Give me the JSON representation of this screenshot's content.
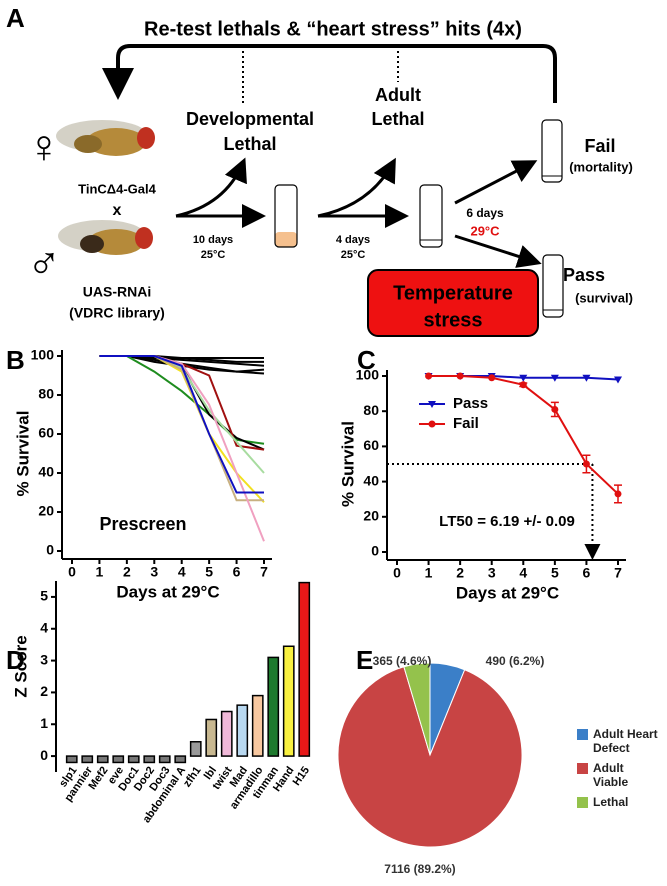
{
  "diagram": {
    "panel": "A",
    "title": "Re-test lethals & “heart stress” hits (4x)",
    "female_symbol": "♀",
    "male_symbol": "♂",
    "female_line": "TinCΔ4-Gal4",
    "cross": "x",
    "male_line": "UAS-RNAi",
    "male_library": "(VDRC library)",
    "step1_time": "10 days",
    "step1_temp": "25°C",
    "step2_time": "4 days",
    "step2_temp": "25°C",
    "step3_time": "6 days",
    "step3_temp": "29°C",
    "dev_lethal": [
      "Developmental",
      "Lethal"
    ],
    "adult_lethal": [
      "Adult",
      "Lethal"
    ],
    "fail": "Fail",
    "fail_note": "(mortality)",
    "pass": "Pass",
    "pass_note": "(survival)",
    "stress_box": [
      "Temperature",
      "stress"
    ]
  },
  "chart_data": [
    {
      "type": "line",
      "panel": "B",
      "annotation": "Prescreen",
      "x_label": "Days at 29°C",
      "y_label": "% Survival",
      "x": [
        1,
        2,
        3,
        4,
        5,
        6,
        7
      ],
      "xlim": [
        0,
        7
      ],
      "xticks": [
        0,
        1,
        2,
        3,
        4,
        5,
        6,
        7
      ],
      "ylim": [
        0,
        100
      ],
      "yticks": [
        0,
        20,
        40,
        60,
        80,
        100
      ],
      "series": [
        {
          "color": "#000000",
          "values": [
            100,
            100,
            99,
            98,
            97,
            96,
            95
          ]
        },
        {
          "color": "#000000",
          "values": [
            100,
            100,
            98,
            96,
            94,
            92,
            91
          ]
        },
        {
          "color": "#000000",
          "values": [
            100,
            100,
            99,
            99,
            99,
            99,
            99
          ]
        },
        {
          "color": "#000000",
          "values": [
            100,
            100,
            97,
            95,
            93,
            92,
            93
          ]
        },
        {
          "color": "#000000",
          "values": [
            100,
            100,
            100,
            99,
            98,
            97,
            97
          ]
        },
        {
          "color": "#1e8c1e",
          "values": [
            100,
            100,
            92,
            82,
            70,
            57,
            55
          ]
        },
        {
          "color": "#000000",
          "values": [
            100,
            100,
            100,
            95,
            70,
            58,
            52
          ]
        },
        {
          "color": "#a01010",
          "values": [
            100,
            100,
            100,
            96,
            90,
            54,
            52
          ]
        },
        {
          "color": "#f2e020",
          "values": [
            100,
            100,
            100,
            92,
            60,
            40,
            25
          ]
        },
        {
          "color": "#a8dca0",
          "values": [
            100,
            100,
            100,
            94,
            72,
            56,
            40
          ]
        },
        {
          "color": "#c8b080",
          "values": [
            100,
            100,
            100,
            93,
            60,
            26,
            26
          ]
        },
        {
          "color": "#f0a0c0",
          "values": [
            100,
            100,
            100,
            96,
            75,
            40,
            5
          ]
        },
        {
          "color": "#1010c0",
          "values": [
            100,
            100,
            100,
            95,
            60,
            30,
            30
          ]
        }
      ]
    },
    {
      "type": "line",
      "panel": "C",
      "annotation": "LT50 = 6.19 +/- 0.09",
      "x_label": "Days at 29°C",
      "y_label": "% Survival",
      "x": [
        1,
        2,
        3,
        4,
        5,
        6,
        7
      ],
      "xlim": [
        0,
        7
      ],
      "xticks": [
        0,
        1,
        2,
        3,
        4,
        5,
        6,
        7
      ],
      "ylim": [
        0,
        100
      ],
      "yticks": [
        0,
        20,
        40,
        60,
        80,
        100
      ],
      "reference": {
        "x": 6.19,
        "y": 50
      },
      "series": [
        {
          "name": "Pass",
          "color": "#1010c0",
          "marker": "triangle-down",
          "values": [
            100,
            100,
            100,
            99,
            99,
            99,
            98
          ],
          "errors": [
            0,
            0,
            0,
            0,
            0,
            0,
            0
          ]
        },
        {
          "name": "Fail",
          "color": "#e01010",
          "marker": "circle",
          "values": [
            100,
            100,
            99,
            95,
            81,
            50,
            33
          ],
          "errors": [
            0,
            0,
            0,
            1,
            4,
            5,
            5
          ]
        }
      ]
    },
    {
      "type": "bar",
      "panel": "D",
      "y_label": "Z Score",
      "categories": [
        "slp1",
        "pannier",
        "Mef2",
        "eve",
        "Doc1",
        "Doc2",
        "Doc3",
        "abdominal A",
        "zfh1",
        "lbl",
        "twist",
        "Mad",
        "armadillo",
        "tinman",
        "Hand",
        "H15"
      ],
      "values": [
        -0.2,
        -0.2,
        -0.2,
        -0.2,
        -0.2,
        -0.2,
        -0.2,
        -0.2,
        0.45,
        1.15,
        1.4,
        1.6,
        1.9,
        3.1,
        3.45,
        5.45
      ],
      "colors": [
        "#777777",
        "#777777",
        "#777777",
        "#777777",
        "#777777",
        "#777777",
        "#777777",
        "#777777",
        "#999999",
        "#c8b890",
        "#f0b8d8",
        "#b8d8f0",
        "#f8c8a0",
        "#1e7a2e",
        "#f8f040",
        "#e81818"
      ],
      "ylim": [
        -0.5,
        5.5
      ],
      "yticks": [
        0,
        1,
        2,
        3,
        4,
        5
      ]
    },
    {
      "type": "pie",
      "panel": "E",
      "categories": [
        "Adult Heart Defect",
        "Adult Viable",
        "Lethal"
      ],
      "values": [
        490,
        7116,
        365
      ],
      "value_labels": [
        "490 (6.2%)",
        "7116 (89.2%)",
        "365 (4.6%)"
      ],
      "colors": [
        "#3b7fc8",
        "#c84444",
        "#94c24c"
      ]
    }
  ]
}
